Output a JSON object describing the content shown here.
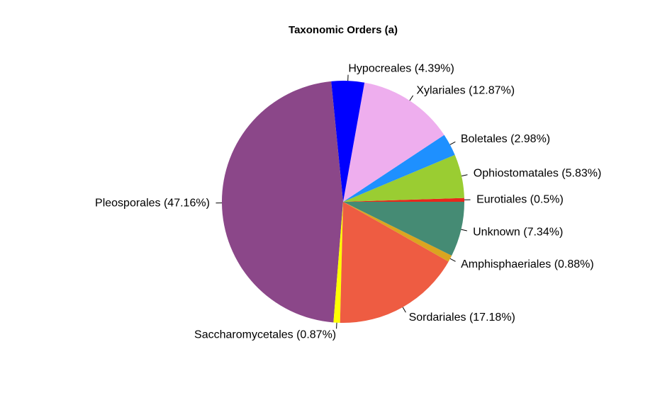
{
  "chart_data": {
    "type": "pie",
    "title": "Taxonomic Orders (a)",
    "direction": "counterclockwise",
    "start": "3 o'clock",
    "slices": [
      {
        "label": "Eurotiales (0.5%)",
        "value": 0.5,
        "color": "#e8271b"
      },
      {
        "label": "Ophiostomatales (5.83%)",
        "value": 5.83,
        "color": "#9acd32"
      },
      {
        "label": "Boletales (2.98%)",
        "value": 2.98,
        "color": "#1e90ff"
      },
      {
        "label": "Xylariales (12.87%)",
        "value": 12.87,
        "color": "#eeaeee"
      },
      {
        "label": "Hypocreales (4.39%)",
        "value": 4.39,
        "color": "#0000ff"
      },
      {
        "label": "Pleosporales (47.16%)",
        "value": 47.16,
        "color": "#8b4789"
      },
      {
        "label": "Saccharomycetales (0.87%)",
        "value": 0.87,
        "color": "#ffff00"
      },
      {
        "label": "Sordariales (17.18%)",
        "value": 17.18,
        "color": "#ee5c42"
      },
      {
        "label": "Amphisphaeriales (0.88%)",
        "value": 0.88,
        "color": "#daa520"
      },
      {
        "label": "Unknown (7.34%)",
        "value": 7.34,
        "color": "#458b74"
      }
    ]
  }
}
